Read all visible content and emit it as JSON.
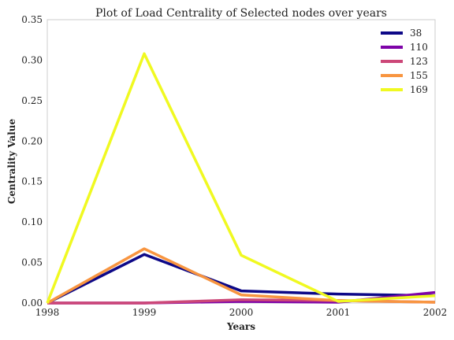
{
  "chart_data": {
    "type": "line",
    "title": "Plot of Load Centrality of Selected nodes over years",
    "xlabel": "Years",
    "ylabel": "Centrality Value",
    "x": [
      1998,
      1999,
      2000,
      2001,
      2002
    ],
    "xlim": [
      1998,
      2002
    ],
    "ylim": [
      0,
      0.35
    ],
    "xticks": [
      "1998",
      "1999",
      "2000",
      "2001",
      "2002"
    ],
    "yticks": [
      "0.00",
      "0.05",
      "0.10",
      "0.15",
      "0.20",
      "0.25",
      "0.30",
      "0.35"
    ],
    "grid": false,
    "legend_position": "top-right",
    "series": [
      {
        "name": "38",
        "color": "#0d0887",
        "values": [
          0.0,
          0.06,
          0.015,
          0.011,
          0.009
        ]
      },
      {
        "name": "110",
        "color": "#7e03a8",
        "values": [
          0.0,
          0.0,
          0.002,
          0.001,
          0.013
        ]
      },
      {
        "name": "123",
        "color": "#cc4778",
        "values": [
          0.0,
          0.0,
          0.004,
          0.003,
          0.001
        ]
      },
      {
        "name": "155",
        "color": "#f89540",
        "values": [
          0.0,
          0.067,
          0.01,
          0.003,
          0.001
        ]
      },
      {
        "name": "169",
        "color": "#f0f921",
        "values": [
          0.0,
          0.308,
          0.059,
          0.002,
          0.009
        ]
      }
    ]
  }
}
